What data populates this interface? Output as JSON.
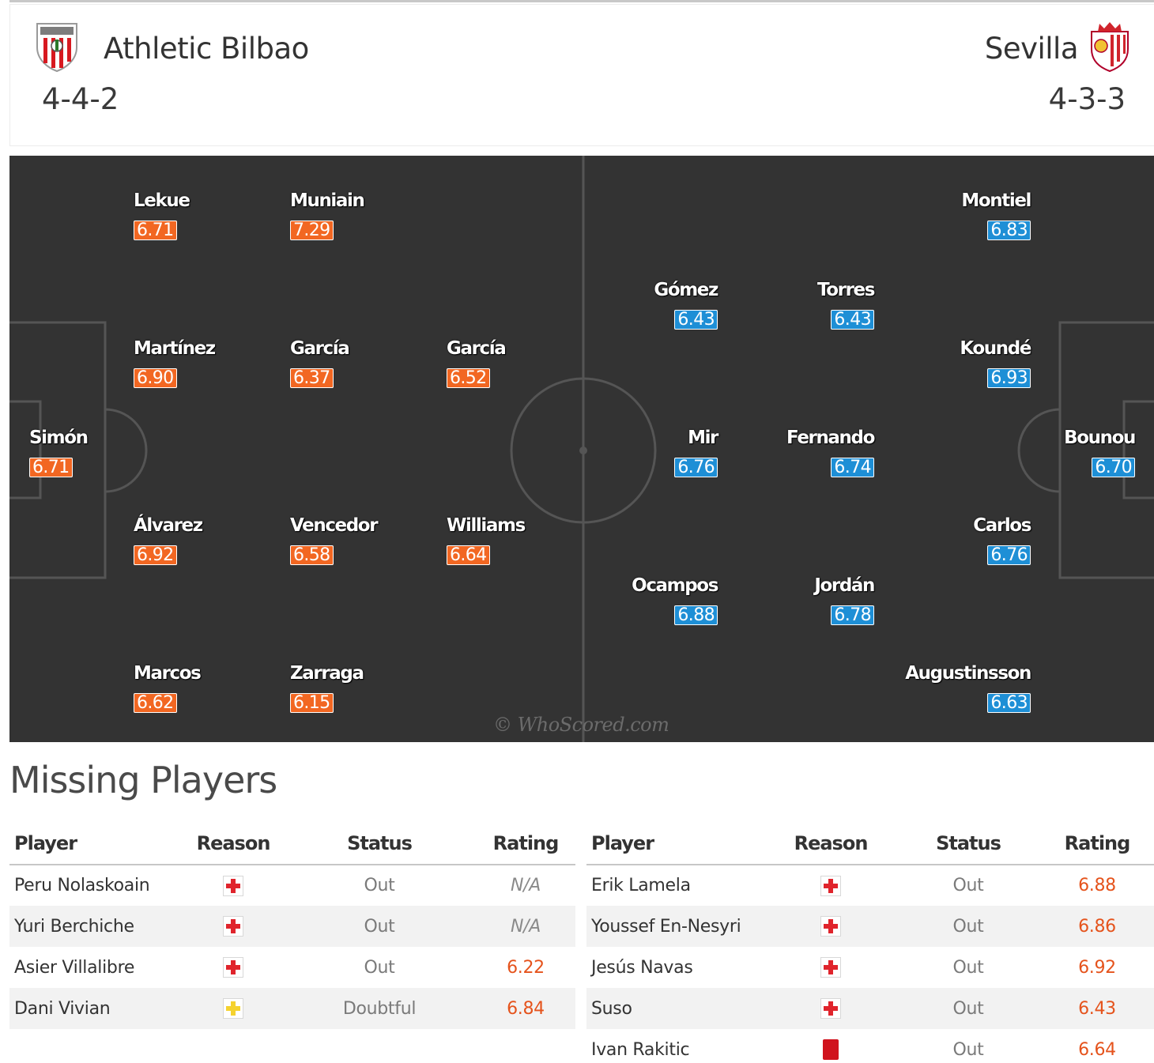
{
  "header": {
    "home": {
      "name": "Athletic Bilbao",
      "formation": "4-4-2",
      "crest_icon": "athletic-bilbao-crest"
    },
    "away": {
      "name": "Sevilla",
      "formation": "4-3-3",
      "crest_icon": "sevilla-crest"
    }
  },
  "pitch": {
    "watermark": "© WhoScored.com",
    "home_color": "#f26722",
    "away_color": "#1e8fd6",
    "home_players": [
      {
        "name": "Lekue",
        "rating": "6.71"
      },
      {
        "name": "Muniain",
        "rating": "7.29"
      },
      {
        "name": "Martínez",
        "rating": "6.90"
      },
      {
        "name": "García",
        "rating": "6.37"
      },
      {
        "name": "García",
        "rating": "6.52"
      },
      {
        "name": "Simón",
        "rating": "6.71"
      },
      {
        "name": "Álvarez",
        "rating": "6.92"
      },
      {
        "name": "Vencedor",
        "rating": "6.58"
      },
      {
        "name": "Williams",
        "rating": "6.64"
      },
      {
        "name": "Marcos",
        "rating": "6.62"
      },
      {
        "name": "Zarraga",
        "rating": "6.15"
      }
    ],
    "away_players": [
      {
        "name": "Montiel",
        "rating": "6.83"
      },
      {
        "name": "Gómez",
        "rating": "6.43"
      },
      {
        "name": "Torres",
        "rating": "6.43"
      },
      {
        "name": "Koundé",
        "rating": "6.93"
      },
      {
        "name": "Mir",
        "rating": "6.76"
      },
      {
        "name": "Fernando",
        "rating": "6.74"
      },
      {
        "name": "Bounou",
        "rating": "6.70"
      },
      {
        "name": "Carlos",
        "rating": "6.76"
      },
      {
        "name": "Ocampos",
        "rating": "6.88"
      },
      {
        "name": "Jordán",
        "rating": "6.78"
      },
      {
        "name": "Augustinsson",
        "rating": "6.63"
      }
    ]
  },
  "missing": {
    "title": "Missing Players",
    "columns": {
      "player": "Player",
      "reason": "Reason",
      "status": "Status",
      "rating": "Rating"
    },
    "home": [
      {
        "player": "Peru Nolaskoain",
        "reason": "injury-icon",
        "status": "Out",
        "rating": "N/A"
      },
      {
        "player": "Yuri Berchiche",
        "reason": "injury-icon",
        "status": "Out",
        "rating": "N/A"
      },
      {
        "player": "Asier Villalibre",
        "reason": "injury-icon",
        "status": "Out",
        "rating": "6.22"
      },
      {
        "player": "Dani Vivian",
        "reason": "doubtful-icon",
        "status": "Doubtful",
        "rating": "6.84"
      }
    ],
    "away": [
      {
        "player": "Erik Lamela",
        "reason": "injury-icon",
        "status": "Out",
        "rating": "6.88"
      },
      {
        "player": "Youssef En-Nesyri",
        "reason": "injury-icon",
        "status": "Out",
        "rating": "6.86"
      },
      {
        "player": "Jesús Navas",
        "reason": "injury-icon",
        "status": "Out",
        "rating": "6.92"
      },
      {
        "player": "Suso",
        "reason": "injury-icon",
        "status": "Out",
        "rating": "6.43"
      },
      {
        "player": "Ivan Rakitic",
        "reason": "red-card-icon",
        "status": "Out",
        "rating": "6.64"
      }
    ]
  }
}
